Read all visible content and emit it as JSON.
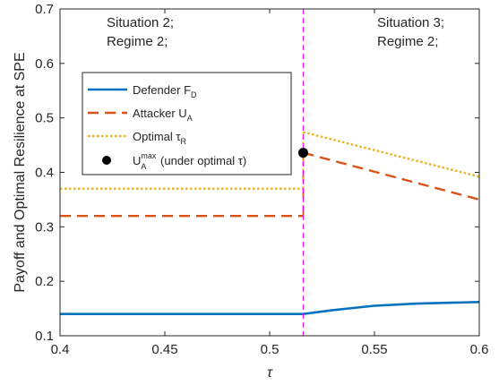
{
  "chart_data": {
    "type": "line",
    "xlabel": "τ",
    "ylabel": "Payoff and Optimal Resilience at SPE",
    "xlim": [
      0.4,
      0.6
    ],
    "ylim": [
      0.1,
      0.7
    ],
    "xticks": [
      0.4,
      0.45,
      0.5,
      0.55,
      0.6
    ],
    "yticks": [
      0.1,
      0.2,
      0.3,
      0.4,
      0.5,
      0.6,
      0.7
    ],
    "xtick_labels": [
      "0.4",
      "0.45",
      "0.5",
      "0.55",
      "0.6"
    ],
    "ytick_labels": [
      "0.1",
      "0.2",
      "0.3",
      "0.4",
      "0.5",
      "0.6",
      "0.7"
    ],
    "grid": false,
    "legend_placement": "upper-left",
    "threshold_x": 0.516,
    "annotations": [
      {
        "lines": [
          "Situation 2;",
          "Regime 2;"
        ],
        "region": "left"
      },
      {
        "lines": [
          "Situation 3;",
          "Regime 2;"
        ],
        "region": "right"
      }
    ],
    "series": [
      {
        "name": "Defender F_D",
        "legend_main": "Defender F",
        "legend_sub": "D",
        "style": "solid",
        "color": "#0072BD",
        "x": [
          0.4,
          0.45,
          0.5,
          0.516,
          0.53,
          0.55,
          0.57,
          0.6
        ],
        "y": [
          0.14,
          0.14,
          0.14,
          0.14,
          0.147,
          0.155,
          0.159,
          0.162
        ]
      },
      {
        "name": "Attacker U_A",
        "legend_main": "Attacker U",
        "legend_sub": "A",
        "style": "dashed",
        "color": "#D95319",
        "segments": [
          {
            "x": [
              0.4,
              0.516
            ],
            "y": [
              0.32,
              0.32
            ]
          },
          {
            "x": [
              0.516,
              0.6
            ],
            "y": [
              0.436,
              0.35
            ]
          }
        ]
      },
      {
        "name": "Optimal τ_R",
        "legend_main": "Optimal τ",
        "legend_sub": "R",
        "style": "dotted",
        "color": "#EDB120",
        "segments": [
          {
            "x": [
              0.4,
              0.516
            ],
            "y": [
              0.37,
              0.37
            ]
          },
          {
            "x": [
              0.516,
              0.6
            ],
            "y": [
              0.474,
              0.392
            ]
          }
        ]
      },
      {
        "name": "U_A^max (under optimal τ)",
        "legend_main": "U",
        "legend_sub": "A",
        "legend_sup": "max",
        "legend_rest": " (under optimal τ)",
        "style": "marker",
        "color": "#000000",
        "x": [
          0.516
        ],
        "y": [
          0.436
        ]
      }
    ],
    "vline_color": "#FF00FF"
  }
}
